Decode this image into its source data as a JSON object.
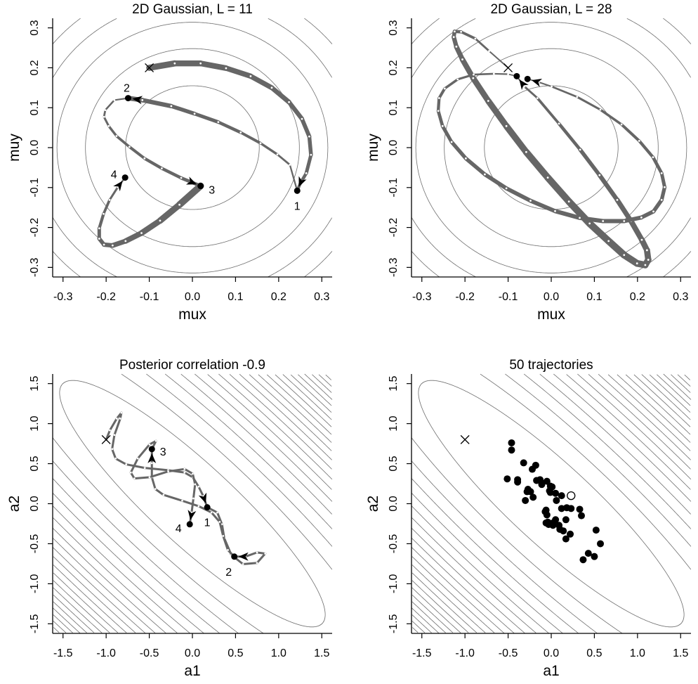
{
  "chart_data": [
    {
      "type": "line",
      "title": "2D Gaussian, L = 11",
      "xlabel": "mux",
      "ylabel": "muy",
      "xlim": [
        -0.324,
        0.324
      ],
      "ylim": [
        -0.324,
        0.324
      ],
      "xticks": [
        "-0.3",
        "-0.2",
        "-0.1",
        "0.0",
        "0.1",
        "0.2",
        "0.3"
      ],
      "yticks": [
        "-0.3",
        "-0.2",
        "-0.1",
        "0.0",
        "0.1",
        "0.2",
        "0.3"
      ],
      "contour_radii": [
        0.155,
        0.248,
        0.314,
        0.368,
        0.415,
        0.458,
        0.497
      ],
      "start": [
        -0.1,
        0.2
      ],
      "trajectories": [
        {
          "label": "1",
          "points": [
            [
              -0.1,
              0.2
            ],
            [
              -0.041,
              0.211
            ],
            [
              0.019,
              0.211
            ],
            [
              0.078,
              0.199
            ],
            [
              0.135,
              0.179
            ],
            [
              0.184,
              0.15
            ],
            [
              0.224,
              0.114
            ],
            [
              0.254,
              0.072
            ],
            [
              0.271,
              0.028
            ],
            [
              0.275,
              -0.018
            ],
            [
              0.264,
              -0.064
            ],
            [
              0.25,
              -0.09
            ],
            [
              0.243,
              -0.108
            ]
          ]
        },
        {
          "label": "2",
          "points": [
            [
              0.243,
              -0.108
            ],
            [
              0.226,
              -0.043
            ],
            [
              0.197,
              -0.017
            ],
            [
              0.158,
              0.011
            ],
            [
              0.112,
              0.038
            ],
            [
              0.06,
              0.064
            ],
            [
              0.005,
              0.085
            ],
            [
              -0.049,
              0.104
            ],
            [
              -0.116,
              0.119
            ],
            [
              -0.149,
              0.124
            ]
          ]
        },
        {
          "label": "3",
          "points": [
            [
              -0.149,
              0.124
            ],
            [
              -0.181,
              0.119
            ],
            [
              -0.202,
              0.094
            ],
            [
              -0.205,
              0.077
            ],
            [
              -0.194,
              0.054
            ],
            [
              -0.176,
              0.029
            ],
            [
              -0.146,
              0.002
            ],
            [
              -0.111,
              -0.027
            ],
            [
              -0.071,
              -0.052
            ],
            [
              -0.026,
              -0.076
            ],
            [
              0.019,
              -0.096
            ]
          ]
        },
        {
          "label": "4",
          "points": [
            [
              0.019,
              -0.096
            ],
            [
              -0.03,
              -0.143
            ],
            [
              -0.075,
              -0.183
            ],
            [
              -0.118,
              -0.214
            ],
            [
              -0.155,
              -0.234
            ],
            [
              -0.185,
              -0.245
            ],
            [
              -0.205,
              -0.243
            ],
            [
              -0.216,
              -0.228
            ],
            [
              -0.216,
              -0.202
            ],
            [
              -0.206,
              -0.166
            ],
            [
              -0.192,
              -0.131
            ],
            [
              -0.173,
              -0.099
            ],
            [
              -0.156,
              -0.075
            ]
          ]
        }
      ]
    },
    {
      "type": "line",
      "title": "2D Gaussian, L = 28",
      "xlabel": "mux",
      "ylabel": "muy",
      "xlim": [
        -0.324,
        0.324
      ],
      "ylim": [
        -0.324,
        0.324
      ],
      "xticks": [
        "-0.3",
        "-0.2",
        "-0.1",
        "0.0",
        "0.1",
        "0.2",
        "0.3"
      ],
      "yticks": [
        "-0.3",
        "-0.2",
        "-0.1",
        "0.0",
        "0.1",
        "0.2",
        "0.3"
      ],
      "contour_radii": [
        0.155,
        0.248,
        0.314,
        0.368,
        0.415,
        0.458,
        0.497
      ],
      "start": [
        -0.1,
        0.2
      ],
      "trajectories": [
        {
          "label": "",
          "points": [
            [
              -0.1,
              0.2
            ],
            [
              -0.144,
              0.242
            ],
            [
              -0.176,
              0.273
            ],
            [
              -0.209,
              0.29
            ],
            [
              -0.224,
              0.291
            ],
            [
              -0.226,
              0.277
            ],
            [
              -0.22,
              0.253
            ],
            [
              -0.206,
              0.221
            ],
            [
              -0.181,
              0.174
            ],
            [
              -0.146,
              0.117
            ],
            [
              -0.104,
              0.054
            ],
            [
              -0.058,
              -0.011
            ],
            [
              -0.008,
              -0.075
            ],
            [
              0.041,
              -0.135
            ],
            [
              0.089,
              -0.19
            ],
            [
              0.133,
              -0.234
            ],
            [
              0.169,
              -0.269
            ],
            [
              0.199,
              -0.29
            ],
            [
              0.218,
              -0.294
            ],
            [
              0.225,
              -0.281
            ],
            [
              0.222,
              -0.257
            ],
            [
              0.21,
              -0.231
            ],
            [
              0.185,
              -0.184
            ],
            [
              0.153,
              -0.131
            ],
            [
              0.112,
              -0.069
            ],
            [
              0.067,
              -0.005
            ],
            [
              0.018,
              0.06
            ],
            [
              -0.032,
              0.124
            ],
            [
              -0.062,
              0.153
            ],
            [
              -0.08,
              0.179
            ]
          ]
        },
        {
          "label": "",
          "points": [
            [
              -0.08,
              0.179
            ],
            [
              -0.1,
              0.184
            ],
            [
              -0.133,
              0.185
            ],
            [
              -0.18,
              0.183
            ],
            [
              -0.217,
              0.171
            ],
            [
              -0.247,
              0.148
            ],
            [
              -0.26,
              0.124
            ],
            [
              -0.262,
              0.092
            ],
            [
              -0.252,
              0.054
            ],
            [
              -0.231,
              0.014
            ],
            [
              -0.198,
              -0.027
            ],
            [
              -0.154,
              -0.067
            ],
            [
              -0.104,
              -0.102
            ],
            [
              -0.048,
              -0.133
            ],
            [
              0.009,
              -0.159
            ],
            [
              0.066,
              -0.176
            ],
            [
              0.12,
              -0.184
            ],
            [
              0.169,
              -0.184
            ],
            [
              0.209,
              -0.175
            ],
            [
              0.237,
              -0.16
            ],
            [
              0.256,
              -0.131
            ],
            [
              0.263,
              -0.099
            ],
            [
              0.256,
              -0.064
            ],
            [
              0.236,
              -0.024
            ],
            [
              0.204,
              0.017
            ],
            [
              0.163,
              0.058
            ],
            [
              0.114,
              0.095
            ],
            [
              0.06,
              0.127
            ],
            [
              0.001,
              0.153
            ],
            [
              -0.029,
              0.164
            ],
            [
              -0.055,
              0.172
            ]
          ]
        }
      ]
    },
    {
      "type": "line",
      "title": "Posterior correlation -0.9",
      "xlabel": "a1",
      "ylabel": "a2",
      "xlim": [
        -1.62,
        1.62
      ],
      "ylim": [
        -1.62,
        1.62
      ],
      "xticks": [
        "-1.5",
        "-1.0",
        "-0.5",
        "0.0",
        "0.5",
        "1.0",
        "1.5"
      ],
      "yticks": [
        "-1.5",
        "-1.0",
        "-0.5",
        "0.0",
        "0.5",
        "1.0",
        "1.5"
      ],
      "correlation": -0.9,
      "contour_step": 2.37,
      "contour_count": 22,
      "start": [
        -1.0,
        0.8
      ],
      "trajectories": [
        {
          "label": "1",
          "points": [
            [
              -1.0,
              0.8
            ],
            [
              -0.957,
              0.916
            ],
            [
              -0.877,
              1.063
            ],
            [
              -0.823,
              1.136
            ],
            [
              -0.836,
              1.063
            ],
            [
              -0.904,
              0.858
            ],
            [
              -0.931,
              0.682
            ],
            [
              -0.89,
              0.564
            ],
            [
              -0.768,
              0.491
            ],
            [
              -0.552,
              0.447
            ],
            [
              -0.281,
              0.418
            ],
            [
              -0.091,
              0.389
            ],
            [
              0.005,
              0.33
            ],
            [
              0.072,
              0.213
            ],
            [
              0.126,
              0.095
            ],
            [
              0.172,
              -0.045
            ]
          ]
        },
        {
          "label": "2",
          "points": [
            [
              0.172,
              -0.045
            ],
            [
              0.289,
              -0.11
            ],
            [
              0.343,
              -0.257
            ],
            [
              0.37,
              -0.433
            ],
            [
              0.451,
              -0.638
            ],
            [
              0.587,
              -0.755
            ],
            [
              0.749,
              -0.74
            ],
            [
              0.844,
              -0.623
            ],
            [
              0.749,
              -0.609
            ],
            [
              0.614,
              -0.661
            ],
            [
              0.486,
              -0.661
            ]
          ]
        },
        {
          "label": "3",
          "points": [
            [
              0.486,
              -0.661
            ],
            [
              0.411,
              -0.579
            ],
            [
              0.356,
              -0.403
            ],
            [
              0.316,
              -0.227
            ],
            [
              0.221,
              -0.11
            ],
            [
              0.072,
              -0.031
            ],
            [
              -0.118,
              0.037
            ],
            [
              -0.335,
              0.11
            ],
            [
              -0.43,
              0.183
            ],
            [
              -0.47,
              0.33
            ],
            [
              -0.47,
              0.506
            ],
            [
              -0.47,
              0.682
            ]
          ]
        },
        {
          "label": "4",
          "points": [
            [
              -0.47,
              0.682
            ],
            [
              -0.421,
              0.784
            ],
            [
              -0.497,
              0.74
            ],
            [
              -0.633,
              0.565
            ],
            [
              -0.714,
              0.389
            ],
            [
              -0.673,
              0.315
            ],
            [
              -0.497,
              0.33
            ],
            [
              -0.28,
              0.403
            ],
            [
              -0.091,
              0.433
            ],
            [
              0.004,
              0.374
            ],
            [
              0.031,
              0.242
            ],
            [
              0.012,
              0.066
            ],
            [
              -0.009,
              -0.11
            ],
            [
              -0.031,
              -0.257
            ]
          ]
        }
      ]
    },
    {
      "type": "scatter",
      "title": "50 trajectories",
      "xlabel": "a1",
      "ylabel": "a2",
      "xlim": [
        -1.62,
        1.62
      ],
      "ylim": [
        -1.62,
        1.62
      ],
      "xticks": [
        "-1.5",
        "-1.0",
        "-0.5",
        "0.0",
        "0.5",
        "1.0",
        "1.5"
      ],
      "yticks": [
        "-1.5",
        "-1.0",
        "-0.5",
        "0.0",
        "0.5",
        "1.0",
        "1.5"
      ],
      "correlation": -0.9,
      "contour_step": 2.37,
      "contour_count": 22,
      "start": [
        -1.0,
        0.8
      ],
      "open_point": [
        0.23,
        0.1
      ],
      "endpoints": [
        [
          -0.46,
          0.76
        ],
        [
          -0.46,
          0.67
        ],
        [
          -0.32,
          0.51
        ],
        [
          -0.22,
          0.43
        ],
        [
          -0.18,
          0.48
        ],
        [
          -0.51,
          0.31
        ],
        [
          -0.39,
          0.3
        ],
        [
          -0.39,
          0.27
        ],
        [
          -0.27,
          0.18
        ],
        [
          -0.28,
          0.15
        ],
        [
          -0.3,
          0.04
        ],
        [
          -0.21,
          0.08
        ],
        [
          -0.17,
          0.29
        ],
        [
          -0.13,
          0.3
        ],
        [
          -0.11,
          0.24
        ],
        [
          -0.05,
          0.28
        ],
        [
          0.01,
          0.21
        ],
        [
          -0.01,
          0.14
        ],
        [
          -0.02,
          0.16
        ],
        [
          0.06,
          0.04
        ],
        [
          0.12,
          0.1
        ],
        [
          0.12,
          -0.06
        ],
        [
          0.18,
          -0.05
        ],
        [
          0.23,
          -0.06
        ],
        [
          0.33,
          -0.07
        ],
        [
          0.35,
          -0.15
        ],
        [
          -0.06,
          -0.08
        ],
        [
          -0.07,
          -0.1
        ],
        [
          -0.05,
          -0.14
        ],
        [
          -0.04,
          -0.23
        ],
        [
          -0.03,
          -0.26
        ],
        [
          0.05,
          -0.2
        ],
        [
          0.02,
          -0.24
        ],
        [
          0.09,
          -0.27
        ],
        [
          0.1,
          -0.32
        ],
        [
          0.14,
          -0.34
        ],
        [
          0.17,
          -0.2
        ],
        [
          0.22,
          -0.38
        ],
        [
          0.17,
          -0.44
        ],
        [
          0.52,
          -0.33
        ],
        [
          0.57,
          -0.5
        ],
        [
          0.43,
          -0.62
        ],
        [
          0.5,
          -0.66
        ],
        [
          0.37,
          -0.7
        ],
        [
          0.05,
          0.13
        ],
        [
          -0.11,
          0.26
        ],
        [
          -0.01,
          0.22
        ],
        [
          -0.24,
          0.15
        ],
        [
          -0.06,
          -0.24
        ],
        [
          0.02,
          -0.27
        ]
      ]
    }
  ],
  "colors": {
    "trajectory": "#666666",
    "contour": "#6e6e6e",
    "marker": "#000000"
  }
}
